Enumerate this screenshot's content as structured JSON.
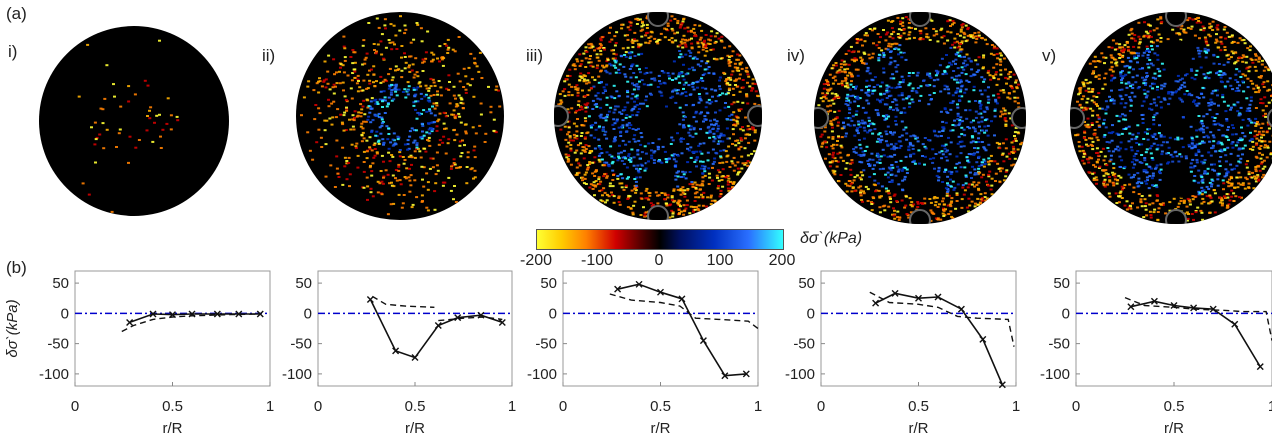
{
  "panel_a_label": "(a)",
  "panel_b_label": "(b)",
  "maps": [
    {
      "label": "i)"
    },
    {
      "label": "ii)"
    },
    {
      "label": "iii)"
    },
    {
      "label": "iv)"
    },
    {
      "label": "v)"
    }
  ],
  "colorbar": {
    "title": "δσ`(kPa)",
    "ticks": [
      "-200",
      "-100",
      "0",
      "100",
      "200"
    ],
    "colors": [
      "#ffff33",
      "#ff8000",
      "#d00000",
      "#000000",
      "#0030c0",
      "#2a6fff",
      "#33ffff"
    ]
  },
  "chart_data": [
    {
      "type": "line",
      "xlabel": "r/R",
      "ylabel": "δσ`(kPa)",
      "xlim": [
        0,
        1
      ],
      "ylim": [
        -120,
        70
      ],
      "xticks": [
        "0",
        "0.5",
        "1"
      ],
      "yticks": [
        "50",
        "0",
        "-50",
        "-100"
      ],
      "zero_line_color": "#0000cc",
      "series": [
        {
          "style": "solid-x",
          "x": [
            0.28,
            0.4,
            0.5,
            0.6,
            0.73,
            0.84,
            0.95
          ],
          "y": [
            -15,
            -1,
            -2,
            -1,
            -1,
            -1,
            -1
          ]
        },
        {
          "style": "dashed",
          "x": [
            0.24,
            0.3,
            0.4,
            0.5,
            0.6,
            0.7,
            0.8,
            0.95
          ],
          "y": [
            -30,
            -20,
            -10,
            -6,
            -4,
            -3,
            -2,
            -1
          ]
        }
      ]
    },
    {
      "type": "line",
      "xlabel": "r/R",
      "ylabel": "",
      "xlim": [
        0,
        1
      ],
      "ylim": [
        -120,
        70
      ],
      "xticks": [
        "0",
        "0.5",
        "1"
      ],
      "yticks": [
        "50",
        "0",
        "-50",
        "-100"
      ],
      "zero_line_color": "#0000cc",
      "series": [
        {
          "style": "solid-x",
          "x": [
            0.27,
            0.4,
            0.5,
            0.62,
            0.72,
            0.84,
            0.95
          ],
          "y": [
            23,
            -62,
            -73,
            -20,
            -7,
            -3,
            -15
          ]
        },
        {
          "style": "dashed",
          "x": [
            0.28,
            0.35,
            0.45,
            0.6
          ],
          "y": [
            28,
            15,
            12,
            10
          ]
        },
        {
          "style": "dashed",
          "x": [
            0.62,
            0.75,
            0.85,
            0.95
          ],
          "y": [
            -12,
            -8,
            -6,
            -10
          ]
        }
      ]
    },
    {
      "type": "line",
      "xlabel": "r/R",
      "ylabel": "",
      "xlim": [
        0,
        1
      ],
      "ylim": [
        -120,
        70
      ],
      "xticks": [
        "0",
        "0.5",
        "1"
      ],
      "yticks": [
        "50",
        "0",
        "-50",
        "-100"
      ],
      "zero_line_color": "#0000cc",
      "series": [
        {
          "style": "solid-x",
          "x": [
            0.28,
            0.39,
            0.5,
            0.61,
            0.72,
            0.83,
            0.94
          ],
          "y": [
            40,
            48,
            35,
            24,
            -45,
            -103,
            -100
          ]
        },
        {
          "style": "dashed",
          "x": [
            0.24,
            0.35,
            0.5,
            0.6,
            0.68,
            0.8,
            0.95,
            1.0
          ],
          "y": [
            32,
            22,
            18,
            12,
            -8,
            -10,
            -13,
            -25
          ]
        }
      ]
    },
    {
      "type": "line",
      "xlabel": "r/R",
      "ylabel": "",
      "xlim": [
        0,
        1
      ],
      "ylim": [
        -120,
        70
      ],
      "xticks": [
        "0",
        "0.5",
        "1"
      ],
      "yticks": [
        "50",
        "0",
        "-50",
        "-100"
      ],
      "zero_line_color": "#0000cc",
      "series": [
        {
          "style": "solid-x",
          "x": [
            0.28,
            0.38,
            0.5,
            0.6,
            0.72,
            0.83,
            0.93
          ],
          "y": [
            17,
            33,
            25,
            27,
            7,
            -43,
            -118
          ]
        },
        {
          "style": "dashed",
          "x": [
            0.25,
            0.35,
            0.5,
            0.6,
            0.7,
            0.8,
            0.96,
            0.99
          ],
          "y": [
            35,
            18,
            15,
            10,
            -5,
            -8,
            -10,
            -55
          ]
        }
      ]
    },
    {
      "type": "line",
      "xlabel": "r/R",
      "ylabel": "",
      "xlim": [
        0,
        1
      ],
      "ylim": [
        -120,
        70
      ],
      "xticks": [
        "0",
        "0.5",
        "1"
      ],
      "yticks": [
        "50",
        "0",
        "-50",
        "-100"
      ],
      "zero_line_color": "#0000cc",
      "series": [
        {
          "style": "solid-x",
          "x": [
            0.28,
            0.4,
            0.5,
            0.6,
            0.7,
            0.81,
            0.94
          ],
          "y": [
            11,
            20,
            13,
            9,
            7,
            -18,
            -88
          ]
        },
        {
          "style": "dashed",
          "x": [
            0.25,
            0.35,
            0.5,
            0.6,
            0.75,
            0.85,
            0.97,
            1.0
          ],
          "y": [
            26,
            13,
            10,
            7,
            5,
            3,
            3,
            -45
          ]
        }
      ]
    }
  ]
}
